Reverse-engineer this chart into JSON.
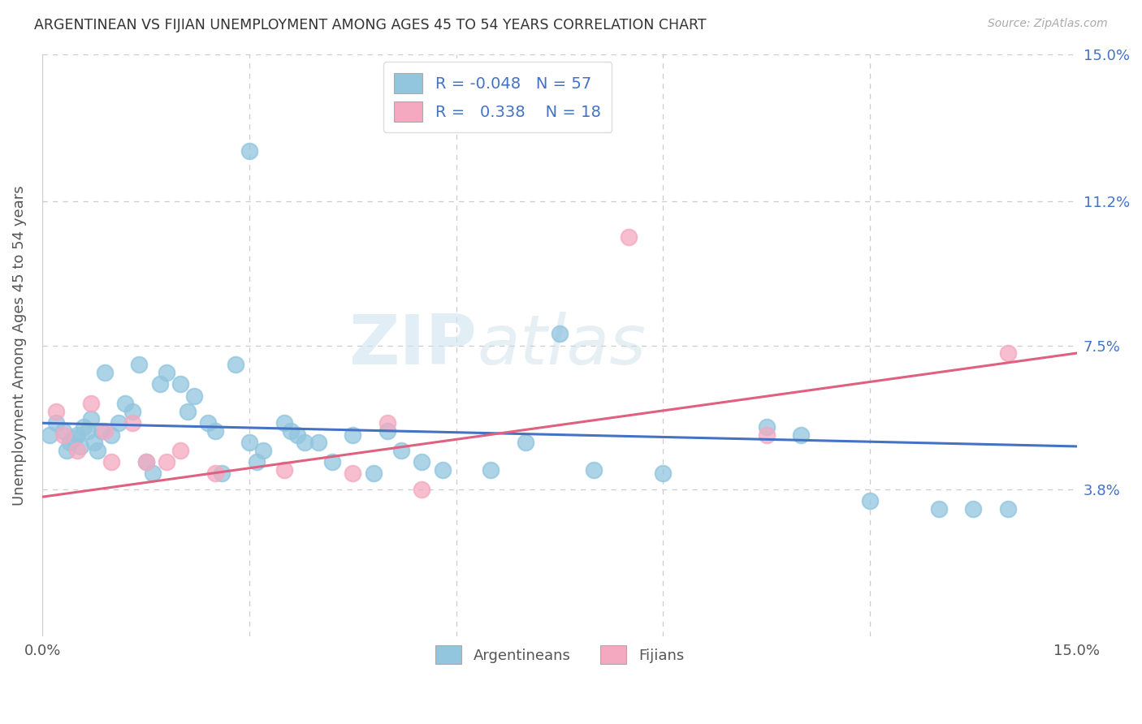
{
  "title": "ARGENTINEAN VS FIJIAN UNEMPLOYMENT AMONG AGES 45 TO 54 YEARS CORRELATION CHART",
  "source": "Source: ZipAtlas.com",
  "ylabel": "Unemployment Among Ages 45 to 54 years",
  "xlim": [
    0.0,
    15.0
  ],
  "ylim": [
    0.0,
    15.0
  ],
  "ytick_labels": [
    "3.8%",
    "7.5%",
    "11.2%",
    "15.0%"
  ],
  "ytick_values": [
    3.8,
    7.5,
    11.2,
    15.0
  ],
  "argentineans_color": "#92c5de",
  "fijians_color": "#f4a9c0",
  "argentineans_line_color": "#4472c4",
  "fijians_line_color": "#e06080",
  "watermark_zip": "ZIP",
  "watermark_atlas": "atlas",
  "legend_R_arg": "-0.048",
  "legend_N_arg": "57",
  "legend_R_fij": "0.338",
  "legend_N_fij": "18",
  "argentineans_x": [
    0.1,
    0.2,
    0.3,
    0.35,
    0.4,
    0.45,
    0.5,
    0.55,
    0.6,
    0.65,
    0.7,
    0.75,
    0.8,
    0.85,
    0.9,
    1.0,
    1.1,
    1.2,
    1.3,
    1.4,
    1.5,
    1.6,
    1.7,
    1.8,
    2.0,
    2.1,
    2.2,
    2.4,
    2.5,
    2.6,
    2.8,
    3.0,
    3.1,
    3.2,
    3.5,
    3.6,
    3.7,
    3.8,
    4.0,
    4.2,
    4.5,
    4.8,
    5.0,
    5.2,
    5.5,
    5.8,
    6.5,
    7.0,
    7.5,
    8.0,
    9.0,
    10.5,
    11.0,
    12.0,
    13.0,
    13.5,
    14.0
  ],
  "argentineans_y": [
    5.2,
    5.5,
    5.3,
    4.8,
    5.0,
    5.1,
    5.2,
    4.9,
    5.4,
    5.3,
    5.6,
    5.0,
    4.8,
    5.3,
    6.8,
    5.2,
    5.5,
    6.0,
    5.8,
    7.0,
    4.5,
    4.2,
    6.5,
    6.8,
    6.5,
    5.8,
    6.2,
    5.5,
    5.3,
    4.2,
    7.0,
    5.0,
    4.5,
    4.8,
    5.5,
    5.3,
    5.2,
    5.0,
    5.0,
    4.5,
    5.2,
    4.2,
    5.3,
    4.8,
    4.5,
    4.3,
    4.3,
    5.0,
    7.8,
    4.3,
    4.2,
    5.4,
    5.2,
    3.5,
    3.3,
    3.3,
    3.3
  ],
  "fijians_x": [
    0.2,
    0.3,
    0.5,
    0.7,
    0.9,
    1.0,
    1.3,
    1.5,
    1.8,
    2.0,
    2.5,
    3.5,
    4.5,
    5.0,
    5.5,
    8.5,
    10.5,
    14.0
  ],
  "fijians_y": [
    5.8,
    5.2,
    4.8,
    6.0,
    5.3,
    4.5,
    5.5,
    4.5,
    4.5,
    4.8,
    4.2,
    4.3,
    4.2,
    5.5,
    3.8,
    10.3,
    5.2,
    7.3
  ],
  "argentinean_special_x": 3.0,
  "argentinean_special_y": 12.5,
  "arg_trend_x0": 0.0,
  "arg_trend_y0": 5.5,
  "arg_trend_x1": 15.0,
  "arg_trend_y1": 4.9,
  "fij_trend_x0": 0.0,
  "fij_trend_y0": 3.6,
  "fij_trend_x1": 15.0,
  "fij_trend_y1": 7.3
}
